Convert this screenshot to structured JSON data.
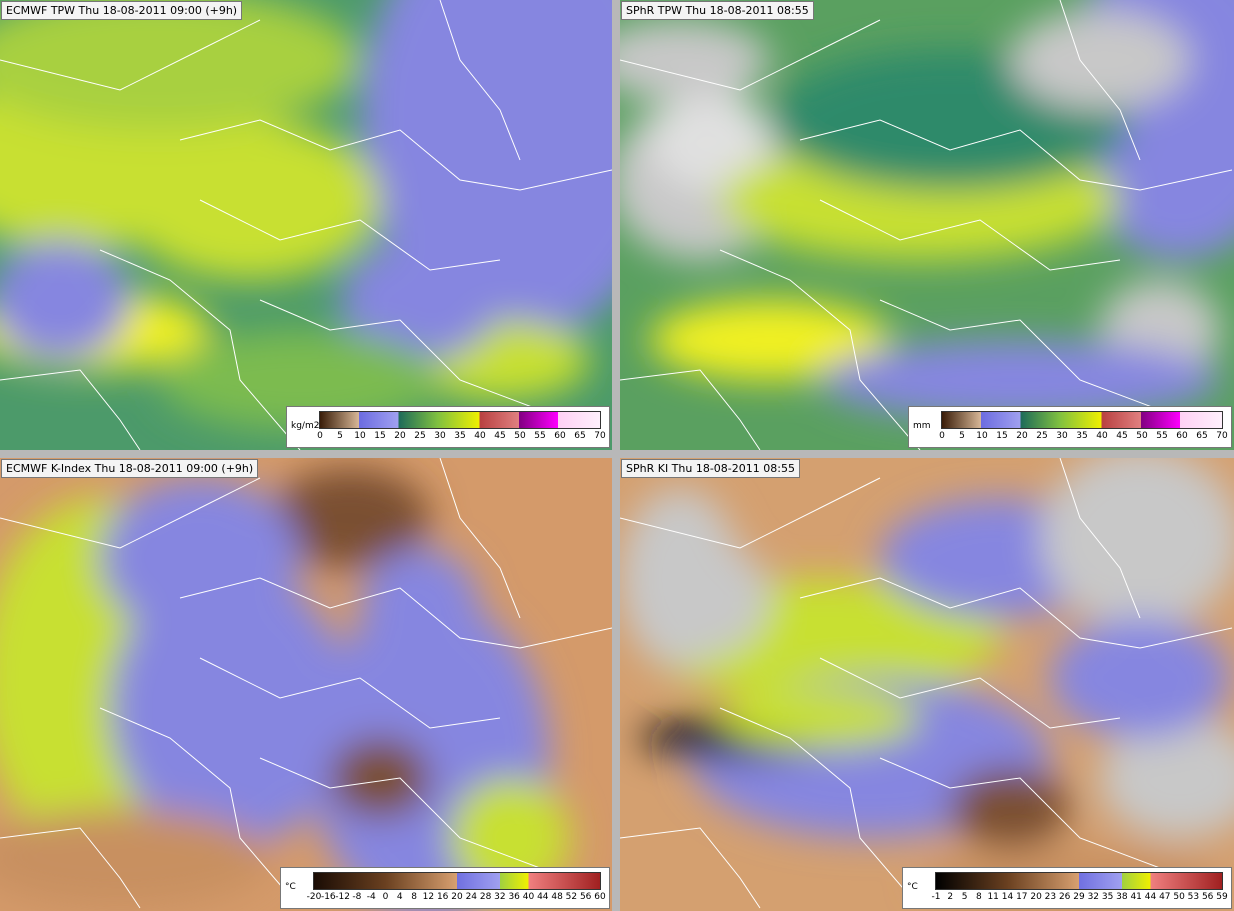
{
  "panels": [
    {
      "title": "ECMWF TPW Thu 18-08-2011 09:00 (+9h)",
      "unit": "kg/m2",
      "ticks": [
        "0",
        "5",
        "10",
        "15",
        "20",
        "25",
        "30",
        "35",
        "40",
        "45",
        "50",
        "55",
        "60",
        "65",
        "70"
      ]
    },
    {
      "title": "SPhR TPW Thu 18-08-2011 08:55",
      "unit": "mm",
      "ticks": [
        "0",
        "5",
        "10",
        "15",
        "20",
        "25",
        "30",
        "35",
        "40",
        "45",
        "50",
        "55",
        "60",
        "65",
        "70"
      ]
    },
    {
      "title": "ECMWF K-Index Thu 18-08-2011 09:00 (+9h)",
      "unit": "°C",
      "ticks": [
        "-20",
        "-16",
        "-12",
        "-8",
        "-4",
        "0",
        "4",
        "8",
        "12",
        "16",
        "20",
        "24",
        "28",
        "32",
        "36",
        "40",
        "44",
        "48",
        "52",
        "56",
        "60"
      ]
    },
    {
      "title": "SPhR KI Thu 18-08-2011 08:55",
      "unit": "°C",
      "ticks": [
        "-1",
        "2",
        "5",
        "8",
        "11",
        "14",
        "17",
        "20",
        "23",
        "26",
        "29",
        "32",
        "35",
        "38",
        "41",
        "44",
        "47",
        "50",
        "53",
        "56",
        "59"
      ]
    }
  ]
}
